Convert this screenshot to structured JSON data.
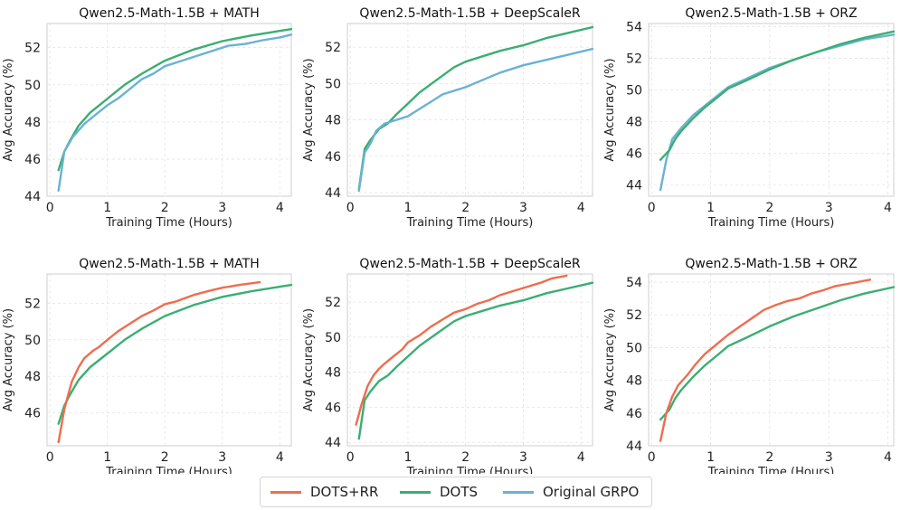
{
  "colors": {
    "dots_rr": "#EE6D4E",
    "dots": "#3BAE72",
    "grpo": "#6AB2D4"
  },
  "legend": {
    "items": [
      "DOTS+RR",
      "DOTS",
      "Original GRPO"
    ]
  },
  "chart_data": [
    {
      "type": "line",
      "title": "Qwen2.5-Math-1.5B + MATH",
      "xlabel": "Training Time (Hours)",
      "ylabel": "Avg Accuracy (%)",
      "xlim": [
        -0.05,
        4.2
      ],
      "ylim": [
        44,
        53.3
      ],
      "xticks": [
        0,
        1,
        2,
        3,
        4
      ],
      "yticks": [
        44,
        46,
        48,
        50,
        52
      ],
      "series": [
        {
          "name": "DOTS",
          "color_key": "dots",
          "x": [
            0.15,
            0.25,
            0.35,
            0.5,
            0.7,
            0.9,
            1.1,
            1.3,
            1.6,
            2.0,
            2.5,
            3.0,
            3.5,
            4.0,
            4.2
          ],
          "y": [
            45.4,
            46.4,
            47.0,
            47.8,
            48.5,
            49.0,
            49.5,
            50.0,
            50.6,
            51.3,
            51.9,
            52.35,
            52.65,
            52.9,
            53.0
          ]
        },
        {
          "name": "Original GRPO",
          "color_key": "grpo",
          "x": [
            0.15,
            0.25,
            0.4,
            0.6,
            0.8,
            1.0,
            1.2,
            1.4,
            1.6,
            1.8,
            2.0,
            2.3,
            2.6,
            2.9,
            3.1,
            3.4,
            3.7,
            4.0,
            4.2
          ],
          "y": [
            44.3,
            46.4,
            47.2,
            47.9,
            48.4,
            48.9,
            49.3,
            49.8,
            50.3,
            50.6,
            51.0,
            51.3,
            51.6,
            51.9,
            52.1,
            52.2,
            52.4,
            52.55,
            52.7
          ]
        }
      ]
    },
    {
      "type": "line",
      "title": "Qwen2.5-Math-1.5B + DeepScaleR",
      "xlabel": "Training Time (Hours)",
      "ylabel": "Avg Accuracy (%)",
      "xlim": [
        -0.05,
        4.2
      ],
      "ylim": [
        43.8,
        53.3
      ],
      "xticks": [
        0,
        1,
        2,
        3,
        4
      ],
      "yticks": [
        44,
        46,
        48,
        50,
        52
      ],
      "series": [
        {
          "name": "DOTS",
          "color_key": "dots",
          "x": [
            0.15,
            0.25,
            0.35,
            0.5,
            0.65,
            0.8,
            1.0,
            1.2,
            1.5,
            1.8,
            2.0,
            2.3,
            2.6,
            3.0,
            3.4,
            3.8,
            4.2
          ],
          "y": [
            44.2,
            46.4,
            46.9,
            47.5,
            47.8,
            48.3,
            48.9,
            49.5,
            50.2,
            50.9,
            51.2,
            51.5,
            51.8,
            52.1,
            52.5,
            52.8,
            53.1
          ]
        },
        {
          "name": "Original GRPO",
          "color_key": "grpo",
          "x": [
            0.15,
            0.25,
            0.35,
            0.45,
            0.6,
            0.8,
            1.0,
            1.2,
            1.4,
            1.6,
            1.8,
            2.0,
            2.3,
            2.6,
            3.0,
            3.4,
            3.8,
            4.2
          ],
          "y": [
            44.1,
            46.2,
            46.7,
            47.4,
            47.8,
            48.0,
            48.2,
            48.6,
            49.0,
            49.4,
            49.6,
            49.8,
            50.2,
            50.6,
            51.0,
            51.3,
            51.6,
            51.9
          ]
        }
      ]
    },
    {
      "type": "line",
      "title": "Qwen2.5-Math-1.5B + ORZ",
      "xlabel": "Training Time (Hours)",
      "ylabel": "Avg Accuracy (%)",
      "xlim": [
        -0.05,
        4.1
      ],
      "ylim": [
        43.3,
        54.2
      ],
      "xticks": [
        0,
        1,
        2,
        3,
        4
      ],
      "yticks": [
        44,
        46,
        48,
        50,
        52,
        54
      ],
      "series": [
        {
          "name": "Original GRPO",
          "color_key": "grpo",
          "x": [
            0.15,
            0.25,
            0.35,
            0.5,
            0.7,
            0.9,
            1.1,
            1.3,
            1.6,
            2.0,
            2.4,
            2.8,
            3.2,
            3.6,
            4.1
          ],
          "y": [
            43.7,
            45.6,
            46.9,
            47.6,
            48.4,
            49.0,
            49.6,
            50.2,
            50.7,
            51.4,
            51.9,
            52.4,
            52.8,
            53.2,
            53.5
          ]
        },
        {
          "name": "DOTS",
          "color_key": "dots",
          "x": [
            0.15,
            0.3,
            0.4,
            0.5,
            0.7,
            0.9,
            1.1,
            1.3,
            1.6,
            2.0,
            2.4,
            2.8,
            3.2,
            3.6,
            4.1
          ],
          "y": [
            45.6,
            46.2,
            46.9,
            47.4,
            48.2,
            48.9,
            49.5,
            50.1,
            50.6,
            51.3,
            51.9,
            52.4,
            52.9,
            53.3,
            53.7
          ]
        }
      ]
    },
    {
      "type": "line",
      "title": "Qwen2.5-Math-1.5B + MATH",
      "xlabel": "Training Time (Hours)",
      "ylabel": "Avg Accuracy (%)",
      "xlim": [
        -0.05,
        4.2
      ],
      "ylim": [
        44.2,
        53.6
      ],
      "xticks": [
        0,
        1,
        2,
        3,
        4
      ],
      "yticks": [
        46,
        48,
        50,
        52
      ],
      "series": [
        {
          "name": "DOTS",
          "color_key": "dots",
          "x": [
            0.15,
            0.25,
            0.35,
            0.5,
            0.7,
            0.9,
            1.1,
            1.3,
            1.6,
            2.0,
            2.5,
            3.0,
            3.5,
            4.0,
            4.2
          ],
          "y": [
            45.4,
            46.4,
            47.0,
            47.8,
            48.5,
            49.0,
            49.5,
            50.0,
            50.6,
            51.3,
            51.9,
            52.35,
            52.65,
            52.9,
            53.0
          ]
        },
        {
          "name": "DOTS+RR",
          "color_key": "dots_rr",
          "x": [
            0.15,
            0.25,
            0.38,
            0.5,
            0.6,
            0.75,
            0.85,
            1.0,
            1.2,
            1.4,
            1.6,
            1.8,
            2.0,
            2.2,
            2.5,
            2.8,
            3.0,
            3.3,
            3.65
          ],
          "y": [
            44.4,
            46.2,
            47.7,
            48.5,
            49.0,
            49.4,
            49.6,
            50.0,
            50.5,
            50.9,
            51.3,
            51.6,
            51.95,
            52.1,
            52.45,
            52.7,
            52.85,
            53.0,
            53.15
          ]
        }
      ]
    },
    {
      "type": "line",
      "title": "Qwen2.5-Math-1.5B + DeepScaleR",
      "xlabel": "Training Time (Hours)",
      "ylabel": "Avg Accuracy (%)",
      "xlim": [
        -0.05,
        4.2
      ],
      "ylim": [
        43.8,
        53.6
      ],
      "xticks": [
        0,
        1,
        2,
        3,
        4
      ],
      "yticks": [
        44,
        46,
        48,
        50,
        52
      ],
      "series": [
        {
          "name": "DOTS",
          "color_key": "dots",
          "x": [
            0.15,
            0.25,
            0.35,
            0.5,
            0.65,
            0.8,
            1.0,
            1.2,
            1.5,
            1.8,
            2.0,
            2.3,
            2.6,
            3.0,
            3.4,
            3.8,
            4.2
          ],
          "y": [
            44.2,
            46.4,
            46.9,
            47.5,
            47.8,
            48.3,
            48.9,
            49.5,
            50.2,
            50.9,
            51.2,
            51.5,
            51.8,
            52.1,
            52.5,
            52.8,
            53.1
          ]
        },
        {
          "name": "DOTS+RR",
          "color_key": "dots_rr",
          "x": [
            0.1,
            0.2,
            0.3,
            0.4,
            0.5,
            0.6,
            0.75,
            0.9,
            1.0,
            1.2,
            1.4,
            1.6,
            1.8,
            2.0,
            2.2,
            2.4,
            2.6,
            2.8,
            3.0,
            3.3,
            3.5,
            3.75
          ],
          "y": [
            45.0,
            46.2,
            47.2,
            47.8,
            48.2,
            48.5,
            48.9,
            49.3,
            49.7,
            50.1,
            50.6,
            51.0,
            51.4,
            51.6,
            51.9,
            52.1,
            52.4,
            52.6,
            52.8,
            53.1,
            53.35,
            53.5
          ]
        }
      ]
    },
    {
      "type": "line",
      "title": "Qwen2.5-Math-1.5B + ORZ",
      "xlabel": "Training Time (Hours)",
      "ylabel": "Avg Accuracy (%)",
      "xlim": [
        -0.05,
        4.1
      ],
      "ylim": [
        44.0,
        54.5
      ],
      "xticks": [
        0,
        1,
        2,
        3,
        4
      ],
      "yticks": [
        44,
        46,
        48,
        50,
        52,
        54
      ],
      "series": [
        {
          "name": "DOTS",
          "color_key": "dots",
          "x": [
            0.15,
            0.3,
            0.4,
            0.5,
            0.7,
            0.9,
            1.1,
            1.3,
            1.6,
            2.0,
            2.4,
            2.8,
            3.2,
            3.6,
            4.1
          ],
          "y": [
            45.6,
            46.2,
            46.9,
            47.4,
            48.2,
            48.9,
            49.5,
            50.1,
            50.6,
            51.3,
            51.9,
            52.4,
            52.9,
            53.3,
            53.7
          ]
        },
        {
          "name": "DOTS+RR",
          "color_key": "dots_rr",
          "x": [
            0.15,
            0.25,
            0.35,
            0.45,
            0.6,
            0.75,
            0.9,
            1.1,
            1.3,
            1.5,
            1.7,
            1.9,
            2.1,
            2.3,
            2.5,
            2.7,
            2.9,
            3.1,
            3.4,
            3.7
          ],
          "y": [
            44.3,
            46.0,
            47.0,
            47.7,
            48.3,
            49.0,
            49.6,
            50.2,
            50.8,
            51.3,
            51.8,
            52.3,
            52.6,
            52.85,
            53.0,
            53.3,
            53.5,
            53.75,
            53.95,
            54.15
          ]
        }
      ]
    }
  ]
}
